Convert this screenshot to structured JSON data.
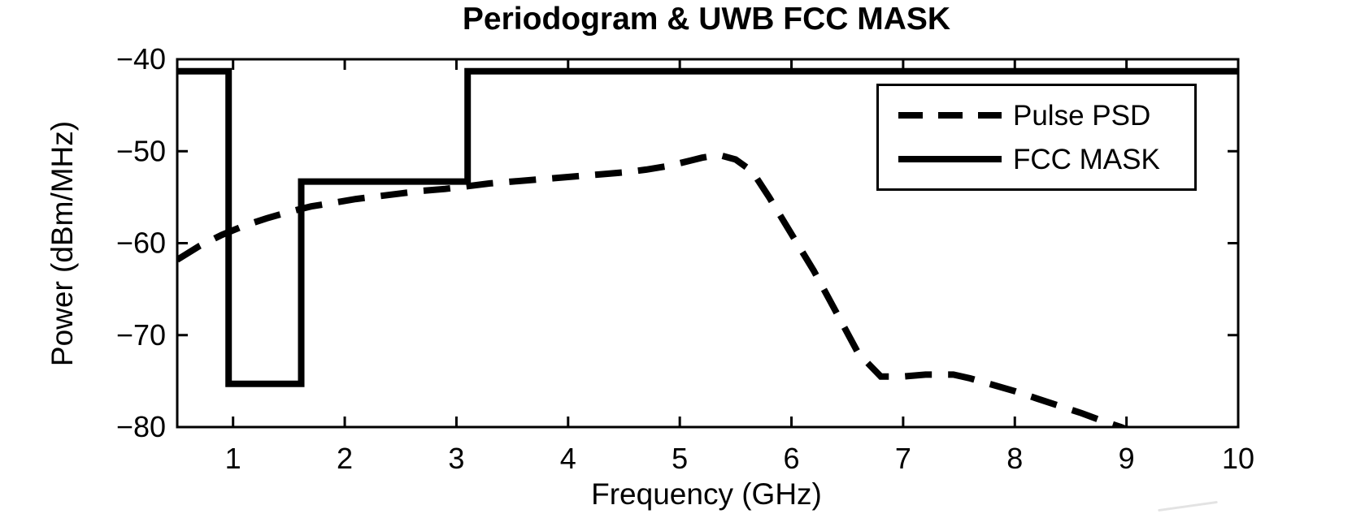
{
  "figure": {
    "title": "Periodogram & UWB FCC MASK",
    "xlabel": "Frequency (GHz)",
    "ylabel": "Power (dBm/MHz)"
  },
  "legend": {
    "entries": [
      {
        "label": "Pulse PSD",
        "style": "dashed"
      },
      {
        "label": "FCC MASK",
        "style": "solid"
      }
    ]
  },
  "chart_data": {
    "type": "line",
    "title": "Periodogram & UWB FCC MASK",
    "xlabel": "Frequency (GHz)",
    "ylabel": "Power (dBm/MHz)",
    "xlim": [
      0.5,
      10
    ],
    "ylim": [
      -80,
      -40
    ],
    "x_ticks": [
      1,
      2,
      3,
      4,
      5,
      6,
      7,
      8,
      9,
      10
    ],
    "y_ticks": [
      -80,
      -70,
      -60,
      -50,
      -40
    ],
    "grid": false,
    "legend_position": "upper-right",
    "line_color": "#000000",
    "background_color": "#ffffff",
    "series": [
      {
        "name": "Pulse PSD",
        "style": "dashed",
        "color": "#000000",
        "x": [
          0.5,
          0.7,
          0.9,
          1.1,
          1.3,
          1.5,
          1.7,
          1.9,
          2.1,
          2.3,
          2.5,
          2.7,
          2.9,
          3.1,
          3.3,
          3.5,
          3.7,
          3.9,
          4.1,
          4.3,
          4.5,
          4.7,
          4.9,
          5.1,
          5.2,
          5.35,
          5.5,
          5.65,
          5.8,
          6.0,
          6.2,
          6.4,
          6.6,
          6.8,
          7.0,
          7.2,
          7.45,
          7.6,
          7.8,
          8.0,
          8.2,
          8.4,
          8.6,
          8.8,
          8.95,
          9.05
        ],
        "y": [
          -61.8,
          -60.3,
          -59.1,
          -58.1,
          -57.3,
          -56.6,
          -56.0,
          -55.6,
          -55.2,
          -54.9,
          -54.6,
          -54.3,
          -54.1,
          -53.8,
          -53.5,
          -53.3,
          -53.1,
          -52.9,
          -52.7,
          -52.5,
          -52.3,
          -52.0,
          -51.6,
          -51.0,
          -50.7,
          -50.4,
          -50.9,
          -52.2,
          -55.0,
          -59.0,
          -63.0,
          -67.5,
          -72.0,
          -74.5,
          -74.5,
          -74.3,
          -74.3,
          -74.7,
          -75.4,
          -76.1,
          -76.9,
          -77.7,
          -78.5,
          -79.4,
          -80.0,
          -80.5
        ]
      },
      {
        "name": "FCC MASK",
        "style": "solid",
        "color": "#000000",
        "x": [
          0.5,
          0.96,
          0.96,
          1.61,
          1.61,
          3.1,
          3.1,
          10
        ],
        "y": [
          -41.3,
          -41.3,
          -75.3,
          -75.3,
          -53.3,
          -53.3,
          -41.3,
          -41.3
        ]
      }
    ]
  }
}
